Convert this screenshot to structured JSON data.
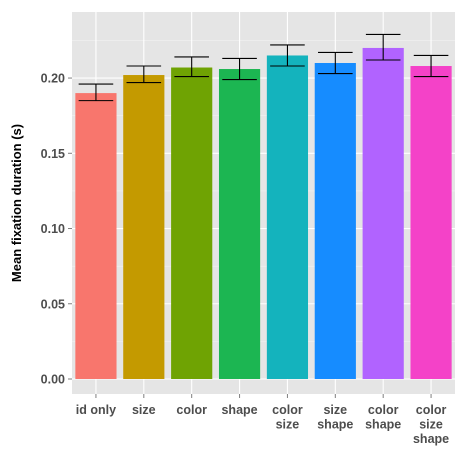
{
  "chart_data": {
    "type": "bar",
    "ylabel": "Mean fixation duration (s)",
    "xlabel": "",
    "ylim": [
      0,
      0.232
    ],
    "yticks": [
      0.0,
      0.05,
      0.1,
      0.15,
      0.2
    ],
    "ytick_labels": [
      "0.00",
      "0.05",
      "0.10",
      "0.15",
      "0.20"
    ],
    "grid": true,
    "categories": [
      {
        "lines": [
          "id only"
        ],
        "value": 0.19,
        "err_low": 0.185,
        "err_high": 0.196,
        "color": "#F8766D"
      },
      {
        "lines": [
          "size"
        ],
        "value": 0.202,
        "err_low": 0.197,
        "err_high": 0.208,
        "color": "#C49A00"
      },
      {
        "lines": [
          "color"
        ],
        "value": 0.207,
        "err_low": 0.201,
        "err_high": 0.214,
        "color": "#6FA303"
      },
      {
        "lines": [
          "shape"
        ],
        "value": 0.206,
        "err_low": 0.199,
        "err_high": 0.213,
        "color": "#1CB652"
      },
      {
        "lines": [
          "color",
          "size"
        ],
        "value": 0.215,
        "err_low": 0.208,
        "err_high": 0.222,
        "color": "#14B3BD"
      },
      {
        "lines": [
          "size",
          "shape"
        ],
        "value": 0.21,
        "err_low": 0.203,
        "err_high": 0.217,
        "color": "#168CFF"
      },
      {
        "lines": [
          "color",
          "shape"
        ],
        "value": 0.22,
        "err_low": 0.212,
        "err_high": 0.229,
        "color": "#B163FF"
      },
      {
        "lines": [
          "color",
          "size",
          "shape"
        ],
        "value": 0.208,
        "err_low": 0.201,
        "err_high": 0.215,
        "color": "#F442C8"
      }
    ]
  }
}
